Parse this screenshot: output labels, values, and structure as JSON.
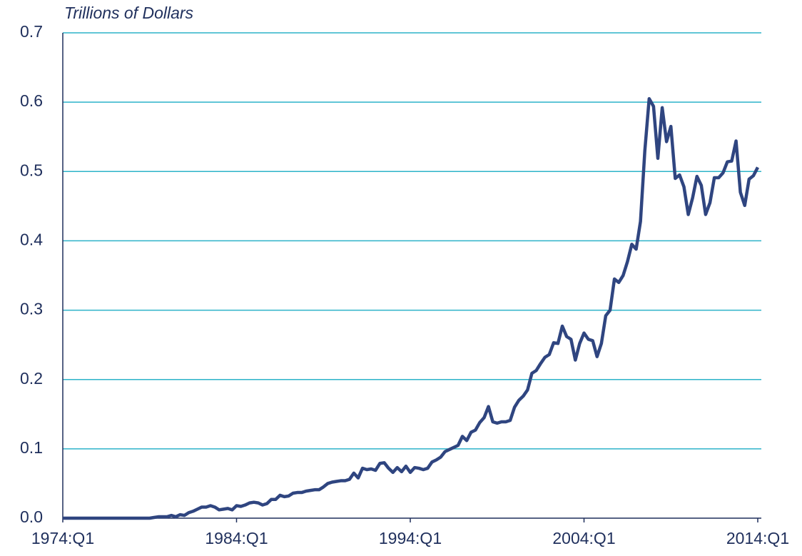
{
  "chart_data": {
    "type": "line",
    "ylabel": "Trillions of Dollars",
    "categories": [
      "1974:Q1",
      null,
      null,
      null,
      null,
      null,
      null,
      null,
      null,
      null,
      null,
      null,
      null,
      null,
      null,
      null,
      null,
      null,
      null,
      null,
      null,
      null,
      null,
      null,
      null,
      null,
      null,
      null,
      null,
      null,
      null,
      null,
      null,
      null,
      null,
      null,
      null,
      null,
      null,
      null,
      "1984:Q1",
      null,
      null,
      null,
      null,
      null,
      null,
      null,
      null,
      null,
      null,
      null,
      null,
      null,
      null,
      null,
      null,
      null,
      null,
      null,
      null,
      null,
      null,
      null,
      null,
      null,
      null,
      null,
      null,
      null,
      null,
      null,
      null,
      null,
      null,
      null,
      null,
      null,
      null,
      null,
      "1994:Q1",
      null,
      null,
      null,
      null,
      null,
      null,
      null,
      null,
      null,
      null,
      null,
      null,
      null,
      null,
      null,
      null,
      null,
      null,
      null,
      null,
      null,
      null,
      null,
      null,
      null,
      null,
      null,
      null,
      null,
      null,
      null,
      null,
      null,
      null,
      null,
      null,
      null,
      null,
      null,
      "2004:Q1",
      null,
      null,
      null,
      null,
      null,
      null,
      null,
      null,
      null,
      null,
      null,
      null,
      null,
      null,
      null,
      null,
      null,
      null,
      null,
      null,
      null,
      null,
      null,
      null,
      null,
      null,
      null,
      null,
      null,
      null,
      null,
      null,
      null,
      null,
      null,
      null,
      null,
      null,
      null,
      "2014:Q1"
    ],
    "values": [
      0,
      0,
      0,
      0,
      0,
      0,
      0,
      0,
      0,
      0,
      0,
      0,
      0,
      0,
      0,
      0,
      0,
      0,
      0,
      0,
      0,
      0.001,
      0.002,
      0.002,
      0.002,
      0.004,
      0.002,
      0.005,
      0.004,
      0.008,
      0.01,
      0.013,
      0.016,
      0.016,
      0.018,
      0.016,
      0.012,
      0.013,
      0.014,
      0.012,
      0.018,
      0.017,
      0.019,
      0.022,
      0.023,
      0.022,
      0.019,
      0.021,
      0.027,
      0.027,
      0.033,
      0.031,
      0.032,
      0.036,
      0.037,
      0.037,
      0.039,
      0.04,
      0.041,
      0.041,
      0.045,
      0.05,
      0.052,
      0.053,
      0.054,
      0.054,
      0.056,
      0.065,
      0.058,
      0.072,
      0.07,
      0.071,
      0.069,
      0.079,
      0.08,
      0.072,
      0.066,
      0.073,
      0.067,
      0.075,
      0.066,
      0.073,
      0.072,
      0.07,
      0.072,
      0.081,
      0.084,
      0.088,
      0.096,
      0.099,
      0.102,
      0.105,
      0.118,
      0.112,
      0.124,
      0.127,
      0.138,
      0.145,
      0.161,
      0.139,
      0.137,
      0.139,
      0.139,
      0.141,
      0.16,
      0.17,
      0.176,
      0.185,
      0.209,
      0.213,
      0.223,
      0.232,
      0.236,
      0.253,
      0.252,
      0.277,
      0.262,
      0.258,
      0.228,
      0.252,
      0.267,
      0.258,
      0.256,
      0.233,
      0.252,
      0.292,
      0.3,
      0.345,
      0.34,
      0.35,
      0.37,
      0.395,
      0.388,
      0.428,
      0.53,
      0.605,
      0.594,
      0.519,
      0.592,
      0.543,
      0.565,
      0.49,
      0.495,
      0.478,
      0.438,
      0.462,
      0.493,
      0.48,
      0.438,
      0.455,
      0.491,
      0.491,
      0.498,
      0.514,
      0.515,
      0.544,
      0.47,
      0.451,
      0.489,
      0.494,
      0.506
    ],
    "color": "#2f4580",
    "ylim": [
      0,
      0.7
    ],
    "yticks": [
      {
        "value": 0,
        "label": "0.0"
      },
      0.1,
      0.2,
      0.3,
      0.4,
      0.5,
      0.6,
      0.7
    ],
    "grid": true,
    "grid_color": "#2db3c9"
  }
}
